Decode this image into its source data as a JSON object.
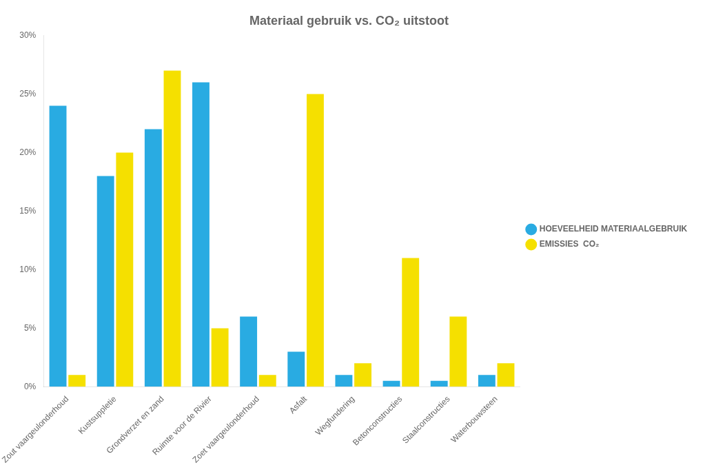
{
  "chart_data": {
    "type": "bar",
    "title": "Materiaal gebruik vs. CO₂ uitstoot",
    "categories": [
      "Zout vaargeulonderhoud",
      "Kustsuppletie",
      "Grondverzet en zand",
      "Ruimte voor de Rivier",
      "Zoet vaargeulonderhoud",
      "Asfalt",
      "Wegfundering",
      "Betonconstructies",
      "Staalconstructies",
      "Waterbouwsteen"
    ],
    "series": [
      {
        "name": "HOEVEELHEID MATERIAALGEBRUIK",
        "color": "#29ABE2",
        "values": [
          24,
          18,
          22,
          26,
          6,
          3,
          1,
          0.5,
          0.5,
          1
        ]
      },
      {
        "name": "EMISSIES  CO₂",
        "color": "#F5E000",
        "values": [
          1,
          20,
          27,
          5,
          1,
          25,
          2,
          11,
          6,
          2
        ]
      }
    ],
    "ylim": [
      0,
      30
    ],
    "yticks": [
      {
        "value": 0,
        "label": "0%"
      },
      {
        "value": 5,
        "label": "5%"
      },
      {
        "value": 10,
        "label": "10%"
      },
      {
        "value": 15,
        "label": "15%"
      },
      {
        "value": 20,
        "label": "20%"
      },
      {
        "value": 25,
        "label": "25%"
      },
      {
        "value": 30,
        "label": "30%"
      }
    ],
    "grid": false,
    "legend": "right"
  }
}
